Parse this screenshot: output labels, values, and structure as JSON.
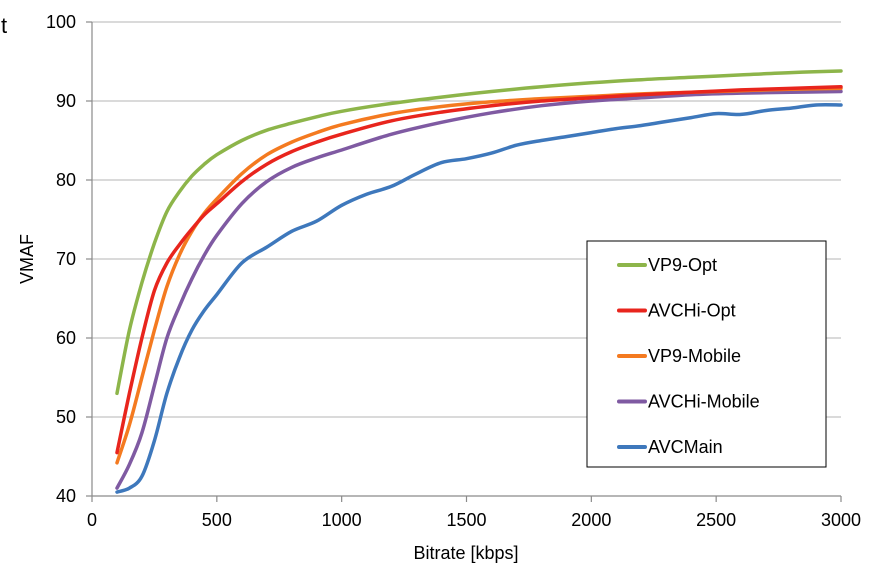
{
  "clipped_text": "t",
  "chart_data": {
    "type": "line",
    "xlabel": "Bitrate [kbps]",
    "ylabel": "VMAF",
    "xlim": [
      0,
      3000
    ],
    "ylim": [
      40,
      100
    ],
    "xticks": [
      0,
      500,
      1000,
      1500,
      2000,
      2500,
      3000
    ],
    "yticks": [
      40,
      50,
      60,
      70,
      80,
      90,
      100
    ],
    "grid": "horizontal",
    "legend_position": "bottom-right",
    "series": [
      {
        "name": "VP9-Opt",
        "color": "#8db54a",
        "x": [
          100,
          150,
          200,
          250,
          300,
          350,
          400,
          450,
          500,
          600,
          700,
          800,
          900,
          1000,
          1200,
          1400,
          1600,
          1800,
          2000,
          2200,
          2400,
          2600,
          2800,
          3000
        ],
        "y": [
          53,
          61,
          67,
          72,
          76,
          78.5,
          80.5,
          82,
          83.2,
          85,
          86.3,
          87.2,
          88,
          88.7,
          89.7,
          90.5,
          91.2,
          91.8,
          92.3,
          92.7,
          93,
          93.3,
          93.6,
          93.8
        ]
      },
      {
        "name": "AVCHi-Opt",
        "color": "#e8251d",
        "x": [
          100,
          150,
          200,
          250,
          300,
          350,
          400,
          450,
          500,
          600,
          700,
          800,
          900,
          1000,
          1200,
          1400,
          1600,
          1800,
          2000,
          2200,
          2400,
          2600,
          2800,
          3000
        ],
        "y": [
          45.5,
          53,
          60,
          66,
          69.5,
          71.8,
          73.8,
          75.6,
          77,
          79.8,
          82,
          83.6,
          84.8,
          85.8,
          87.5,
          88.6,
          89.4,
          90,
          90.4,
          90.8,
          91.1,
          91.4,
          91.6,
          91.8
        ]
      },
      {
        "name": "VP9-Mobile",
        "color": "#f47a20",
        "x": [
          100,
          150,
          200,
          250,
          300,
          350,
          400,
          450,
          500,
          600,
          700,
          800,
          900,
          1000,
          1200,
          1400,
          1600,
          1800,
          2000,
          2200,
          2400,
          2600,
          2800,
          3000
        ],
        "y": [
          44.2,
          49,
          55,
          61,
          66.5,
          70.5,
          73.5,
          75.8,
          77.6,
          80.8,
          83.2,
          84.8,
          86,
          87,
          88.4,
          89.3,
          89.9,
          90.3,
          90.6,
          90.9,
          91.1,
          91.3,
          91.5,
          91.6
        ]
      },
      {
        "name": "AVCHi-Mobile",
        "color": "#7f5aa2",
        "x": [
          100,
          150,
          200,
          250,
          300,
          350,
          400,
          450,
          500,
          600,
          700,
          800,
          900,
          1000,
          1200,
          1400,
          1600,
          1800,
          2000,
          2200,
          2400,
          2600,
          2800,
          3000
        ],
        "y": [
          41,
          44,
          48,
          54,
          60,
          64,
          67.5,
          70.5,
          73,
          77,
          79.8,
          81.6,
          82.8,
          83.8,
          85.8,
          87.3,
          88.5,
          89.4,
          90,
          90.4,
          90.8,
          91,
          91.1,
          91.2
        ]
      },
      {
        "name": "AVCMain",
        "color": "#3e78bc",
        "x": [
          100,
          150,
          200,
          250,
          300,
          350,
          400,
          450,
          500,
          600,
          700,
          800,
          900,
          1000,
          1100,
          1200,
          1300,
          1400,
          1500,
          1600,
          1700,
          1800,
          1900,
          2000,
          2100,
          2200,
          2300,
          2400,
          2500,
          2600,
          2700,
          2800,
          2900,
          3000
        ],
        "y": [
          40.5,
          41,
          42.5,
          47,
          53,
          57.5,
          61,
          63.5,
          65.5,
          69.5,
          71.5,
          73.5,
          74.8,
          76.8,
          78.2,
          79.2,
          80.8,
          82.2,
          82.7,
          83.4,
          84.4,
          85,
          85.5,
          86,
          86.5,
          86.9,
          87.4,
          87.9,
          88.4,
          88.3,
          88.8,
          89.1,
          89.5,
          89.5
        ]
      }
    ]
  }
}
